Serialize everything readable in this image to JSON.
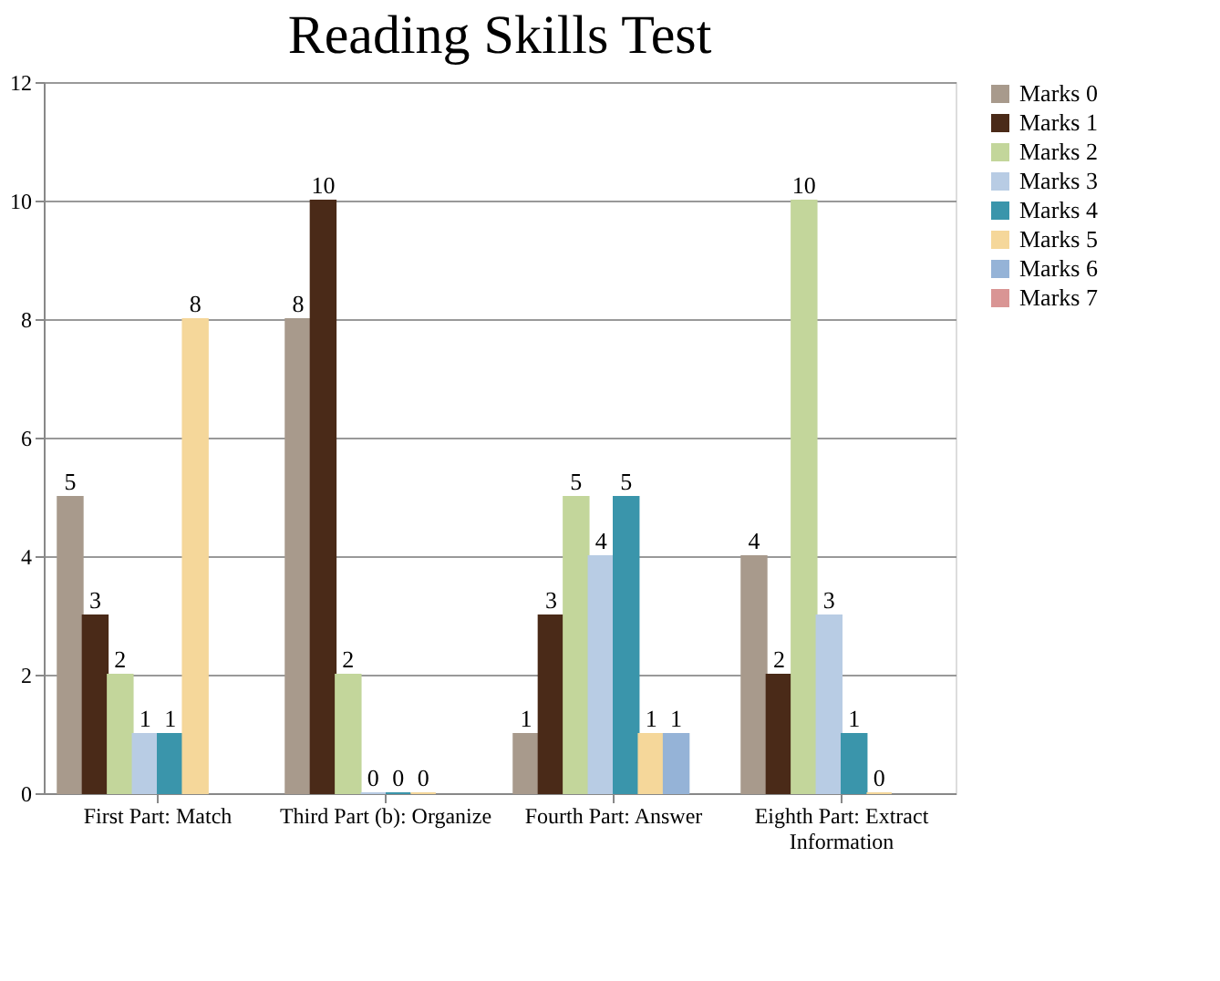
{
  "chart_data": {
    "type": "bar",
    "title": "Reading Skills Test",
    "categories": [
      "First Part: Match",
      "Third Part (b): Organize",
      "Fourth Part: Answer",
      "Eighth Part: Extract Information"
    ],
    "series": [
      {
        "name": "Marks 0",
        "color": "#a89a8c",
        "values": [
          5,
          8,
          1,
          4
        ]
      },
      {
        "name": "Marks 1",
        "color": "#4a2a18",
        "values": [
          3,
          10,
          3,
          2
        ]
      },
      {
        "name": "Marks 2",
        "color": "#c3d69b",
        "values": [
          2,
          2,
          5,
          10
        ]
      },
      {
        "name": "Marks 3",
        "color": "#b8cce4",
        "values": [
          1,
          0,
          4,
          3
        ]
      },
      {
        "name": "Marks 4",
        "color": "#3a95ab",
        "values": [
          1,
          0,
          5,
          1
        ]
      },
      {
        "name": "Marks 5",
        "color": "#f5d79a",
        "values": [
          8,
          0,
          1,
          0
        ]
      },
      {
        "name": "Marks 6",
        "color": "#95b3d7",
        "values": [
          null,
          null,
          1,
          null
        ]
      },
      {
        "name": "Marks 7",
        "color": "#d99594",
        "values": [
          null,
          null,
          null,
          null
        ]
      }
    ],
    "ylim": [
      0,
      12
    ],
    "yticks": [
      0,
      2,
      4,
      6,
      8,
      10,
      12
    ],
    "grid": "y",
    "legend": "right",
    "data_labels": true
  }
}
